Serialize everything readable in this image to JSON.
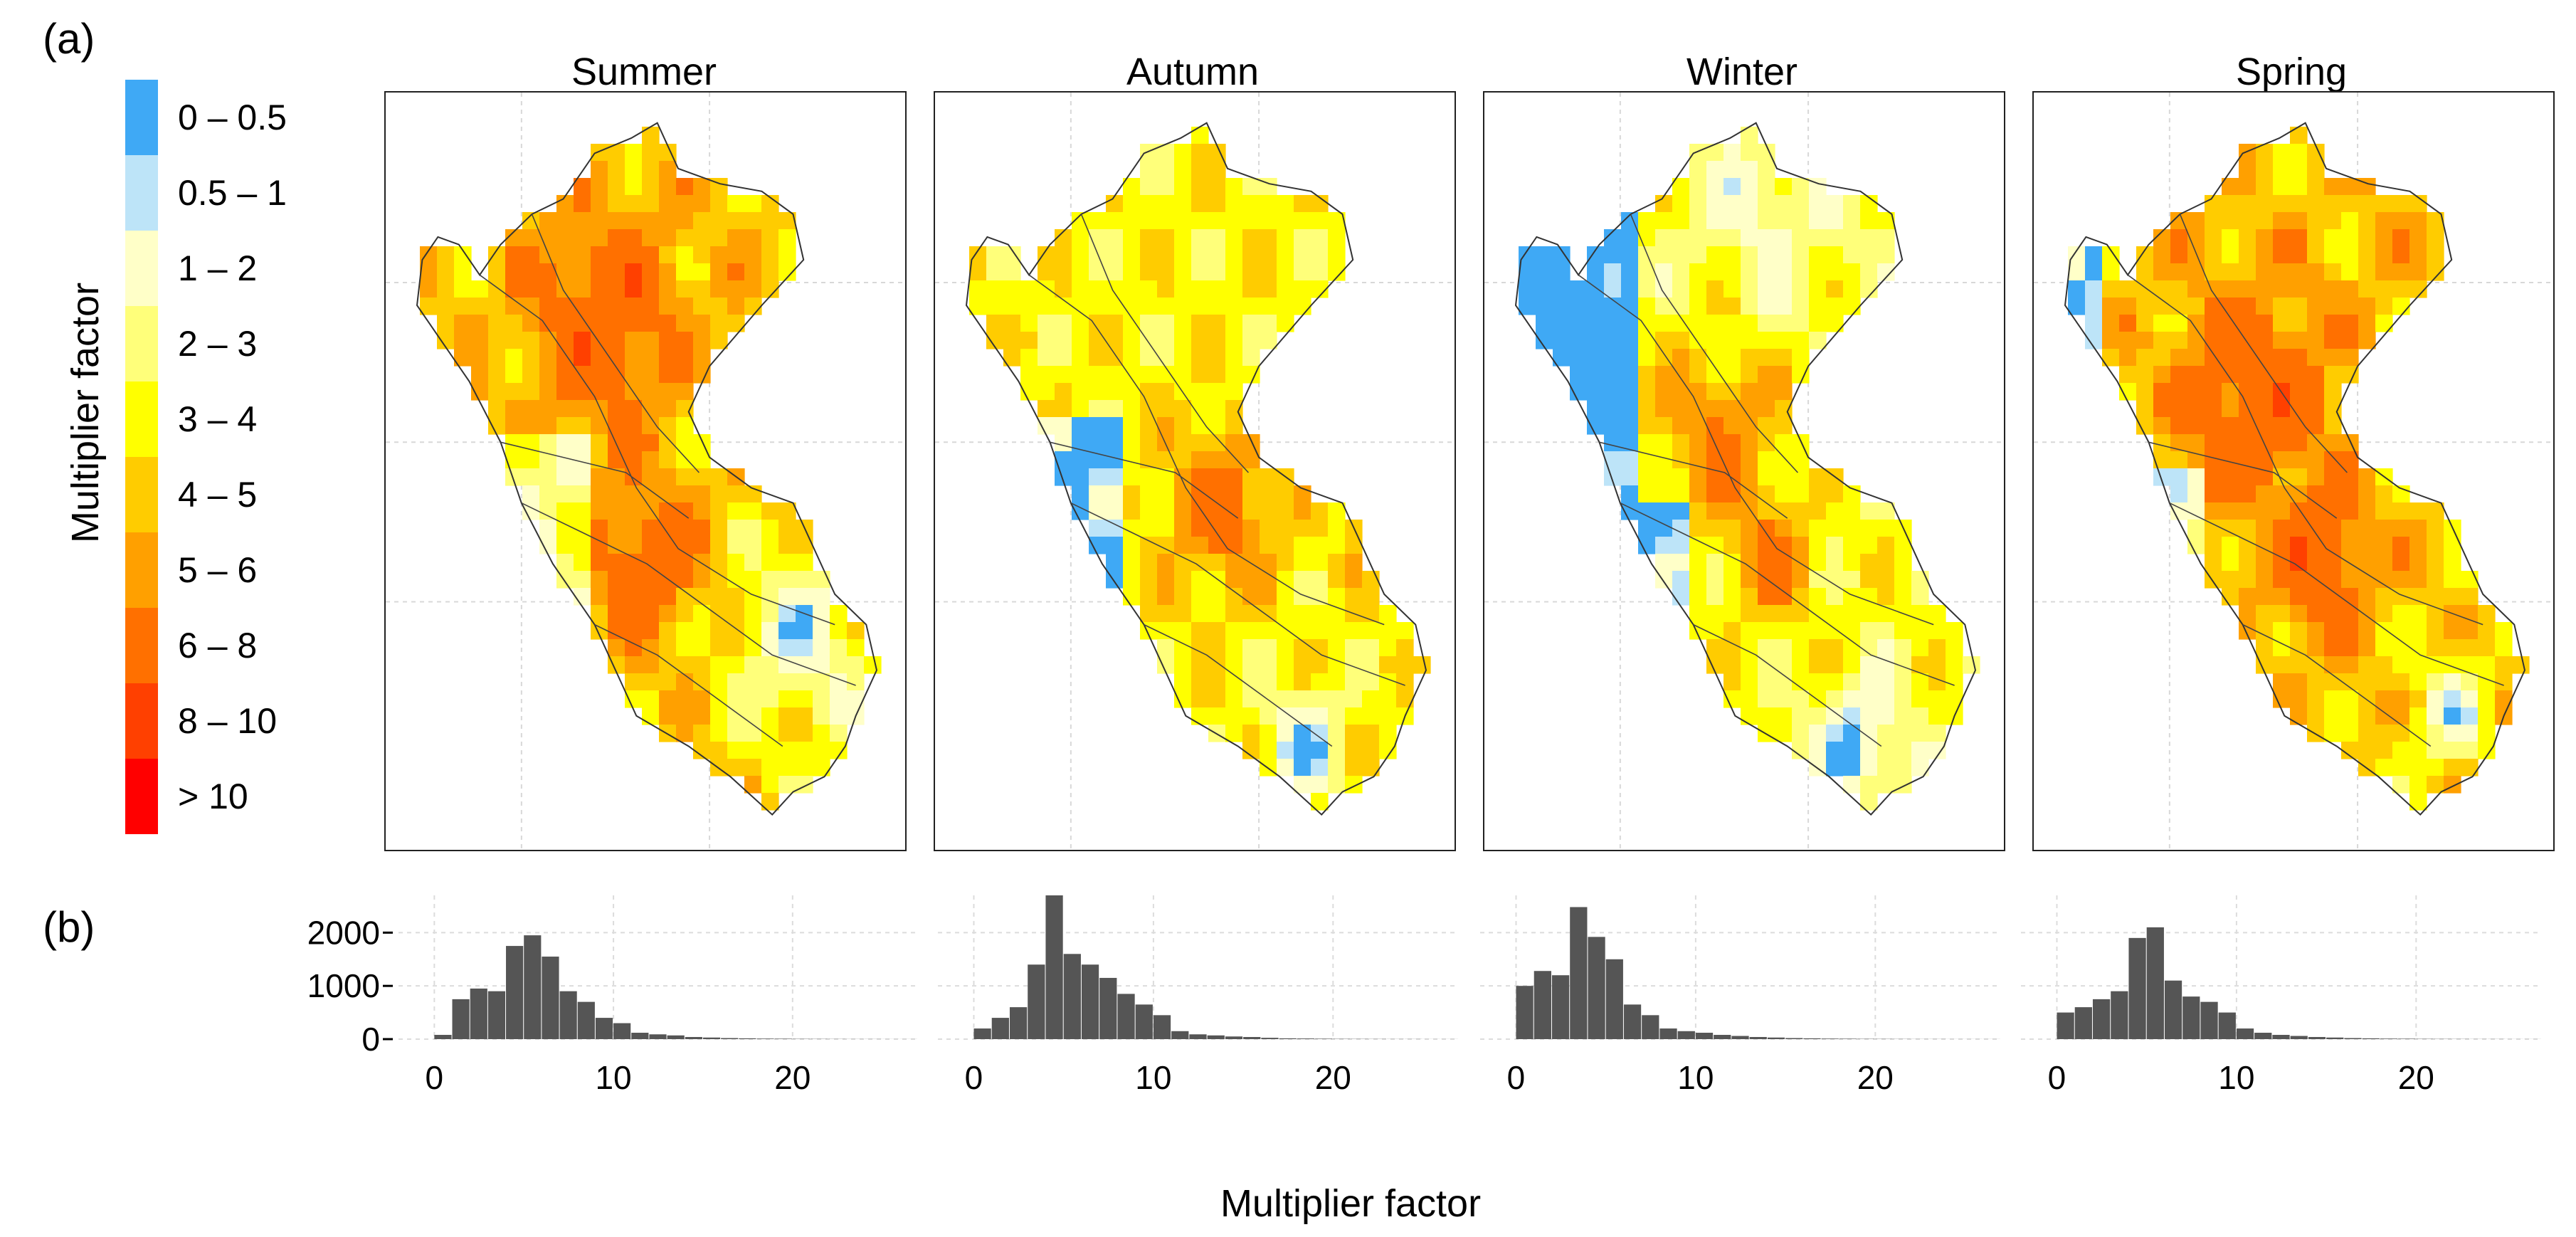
{
  "panel_labels": {
    "a": "(a)",
    "b": "(b)"
  },
  "legend": {
    "title": "Multiplier factor",
    "items": [
      {
        "label": "0 – 0.5",
        "color": "#3fa9f5"
      },
      {
        "label": "0.5 – 1",
        "color": "#bde4f8"
      },
      {
        "label": "1 – 2",
        "color": "#ffffc8"
      },
      {
        "label": "2 – 3",
        "color": "#ffff7a"
      },
      {
        "label": "3 – 4",
        "color": "#ffff00"
      },
      {
        "label": "4 – 5",
        "color": "#ffcc00"
      },
      {
        "label": "5 – 6",
        "color": "#ffa000"
      },
      {
        "label": "6 – 8",
        "color": "#ff7000"
      },
      {
        "label": "8 – 10",
        "color": "#ff4000"
      },
      {
        "label": "> 10",
        "color": "#ff0000"
      }
    ]
  },
  "seasons": [
    {
      "name": "Summer"
    },
    {
      "name": "Autumn"
    },
    {
      "name": "Winter"
    },
    {
      "name": "Spring"
    }
  ],
  "chart_data": [
    {
      "type": "heatmap",
      "description_of_panels": "Season maps (a)",
      "panels": [
        "Summer",
        "Autumn",
        "Winter",
        "Spring"
      ],
      "legend_title": "Multiplier factor",
      "classes": [
        "0 – 0.5",
        "0.5 – 1",
        "1 – 2",
        "2 – 3",
        "3 – 4",
        "4 – 5",
        "5 – 6",
        "6 – 8",
        "8 – 10",
        "> 10"
      ]
    },
    {
      "type": "bar",
      "xlabel": "Multiplier factor",
      "ylabel": "",
      "xlim": [
        -2,
        27
      ],
      "ylim": [
        0,
        2700
      ],
      "x_ticks": [
        0,
        10,
        20
      ],
      "y_ticks": [
        0,
        1000,
        2000
      ],
      "bin_width": 1,
      "bin_starts": [
        0,
        1,
        2,
        3,
        4,
        5,
        6,
        7,
        8,
        9,
        10,
        11,
        12,
        13,
        14,
        15,
        16,
        17,
        18,
        19,
        20,
        21,
        22,
        23,
        24,
        25,
        26
      ],
      "series": [
        {
          "name": "Summer",
          "values": [
            80,
            750,
            950,
            900,
            1750,
            1950,
            1550,
            900,
            700,
            400,
            300,
            120,
            90,
            70,
            40,
            30,
            20,
            15,
            10,
            8,
            5,
            4,
            3,
            2,
            2,
            1,
            1
          ]
        },
        {
          "name": "Autumn",
          "values": [
            200,
            400,
            600,
            1400,
            2700,
            1600,
            1400,
            1150,
            850,
            650,
            450,
            150,
            90,
            70,
            50,
            40,
            25,
            15,
            12,
            8,
            5,
            4,
            3,
            2,
            2,
            1,
            1
          ]
        },
        {
          "name": "Winter",
          "values": [
            1000,
            1280,
            1200,
            2480,
            1920,
            1500,
            650,
            450,
            200,
            150,
            120,
            80,
            60,
            40,
            30,
            20,
            15,
            10,
            8,
            5,
            4,
            3,
            2,
            2,
            1,
            1,
            1
          ]
        },
        {
          "name": "Spring",
          "values": [
            500,
            600,
            750,
            900,
            1900,
            2100,
            1100,
            800,
            700,
            500,
            200,
            120,
            80,
            60,
            40,
            30,
            20,
            15,
            10,
            8,
            5,
            4,
            3,
            2,
            2,
            1,
            1
          ]
        }
      ]
    }
  ]
}
